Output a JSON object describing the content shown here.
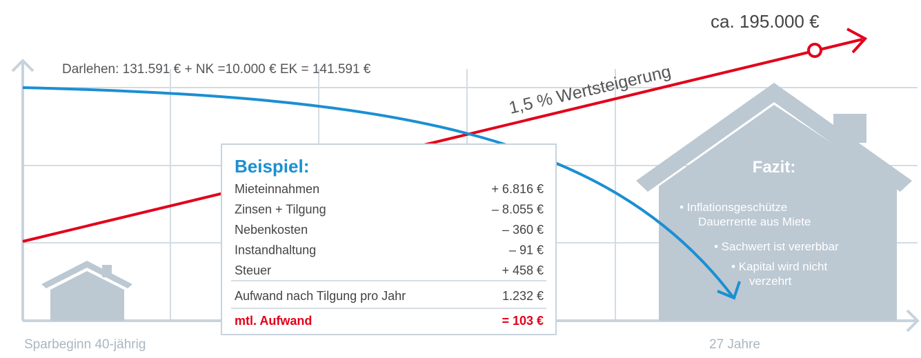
{
  "loan_label": "Darlehen: 131.591 € + NK =10.000 € EK = 141.591 €",
  "end_value": "ca. 195.000 €",
  "growth_label": "1,5 % Wertsteigerung",
  "x_start": "Sparbeginn 40-jährig",
  "x_end": "27 Jahre",
  "example": {
    "title": "Beispiel:",
    "rows": [
      [
        "Mieteinnahmen",
        "+ 6.816 €"
      ],
      [
        "Zinsen + Tilgung",
        "– 8.055 €"
      ],
      [
        "Nebenkosten",
        "– 360 €"
      ],
      [
        "Instandhaltung",
        "– 91 €"
      ],
      [
        "Steuer",
        "+ 458 €"
      ]
    ],
    "subtotal": [
      "Aufwand nach Tilgung pro Jahr",
      "1.232 €"
    ],
    "total": [
      "mtl. Aufwand",
      "= 103 €"
    ]
  },
  "conclusion": {
    "title": "Fazit:",
    "points": [
      "• Inflationsgeschütze",
      "Dauerrente aus Miete",
      "• Sachwert ist vererbbar",
      "• Kapital wird nicht",
      "verzehrt"
    ]
  }
}
